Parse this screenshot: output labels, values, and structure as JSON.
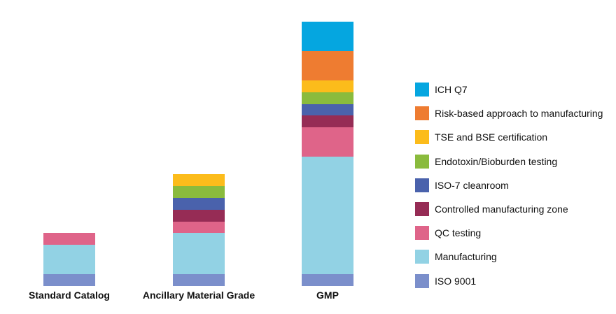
{
  "chart_data": {
    "type": "bar",
    "stacked": true,
    "title": "",
    "xlabel": "",
    "ylabel": "",
    "ylim": [
      0,
      22
    ],
    "categories": [
      "Standard Catalog",
      "Ancillary Material Grade",
      "GMP"
    ],
    "series": [
      {
        "name": "ISO 9001",
        "color": "#7b8fcb",
        "values": [
          1,
          1,
          1
        ]
      },
      {
        "name": "Manufacturing",
        "color": "#92d2e4",
        "values": [
          2.5,
          3.5,
          10
        ]
      },
      {
        "name": "QC testing",
        "color": "#df6489",
        "values": [
          1,
          1,
          2.5
        ]
      },
      {
        "name": "Controlled manufacturing zone",
        "color": "#962c55",
        "values": [
          0,
          1,
          1
        ]
      },
      {
        "name": "ISO-7 cleanroom",
        "color": "#4a62ac",
        "values": [
          0,
          1,
          1
        ]
      },
      {
        "name": "Endotoxin/Bioburden testing",
        "color": "#8abb3d",
        "values": [
          0,
          1,
          1
        ]
      },
      {
        "name": "TSE and BSE certification",
        "color": "#fcbc1b",
        "values": [
          0,
          1,
          1
        ]
      },
      {
        "name": "Risk-based approach to manufacturing",
        "color": "#ee7c31",
        "values": [
          0,
          0,
          2.5
        ]
      },
      {
        "name": "ICH Q7",
        "color": "#05a6e0",
        "values": [
          0,
          0,
          2.5
        ]
      }
    ],
    "legend_position": "right",
    "grid": false
  }
}
